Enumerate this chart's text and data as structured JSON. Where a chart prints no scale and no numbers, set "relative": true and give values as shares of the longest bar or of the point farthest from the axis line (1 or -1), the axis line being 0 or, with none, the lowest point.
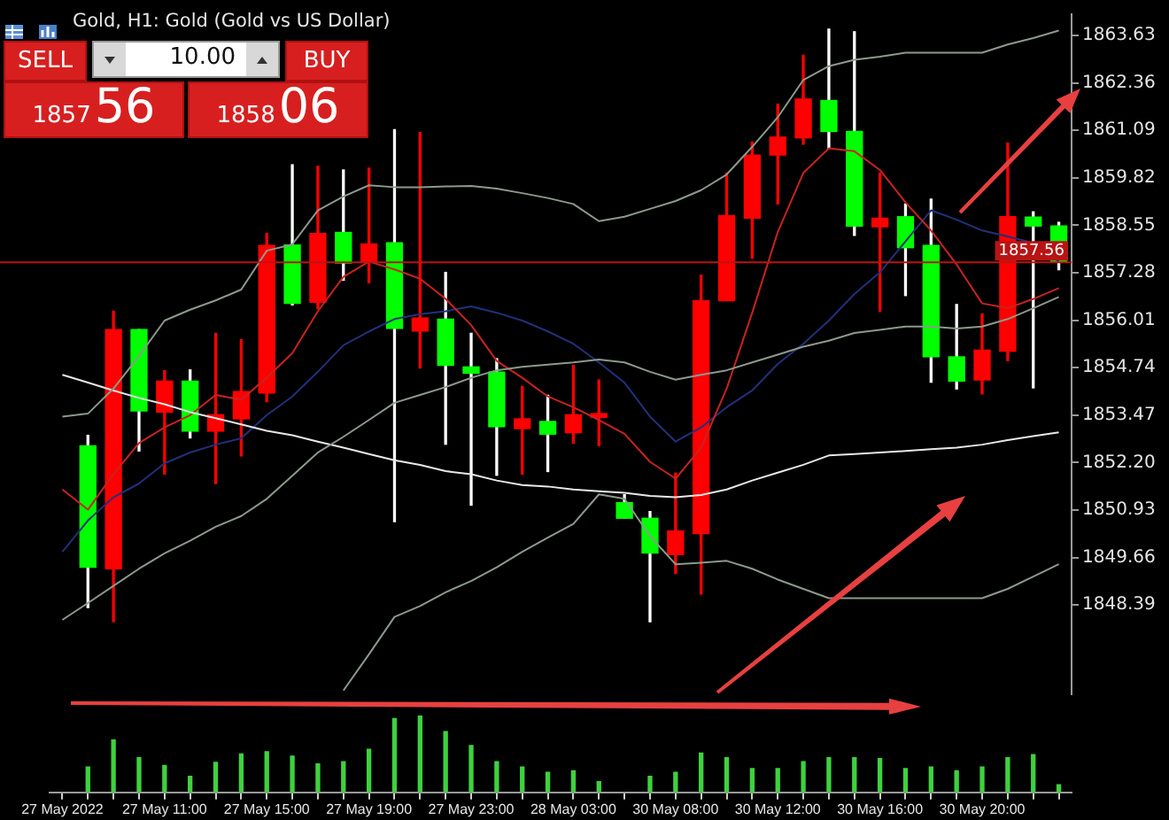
{
  "chart_data": [
    {
      "type": "candlestick",
      "title": "Gold, H1: Gold (Gold vs US Dollar)",
      "annotations": [
        "SELL",
        "10.00",
        "BUY",
        "1857",
        "56",
        "1858",
        "06"
      ],
      "categories": [
        null,
        null,
        null,
        null,
        null,
        null,
        null,
        null,
        null,
        null,
        null,
        null,
        null,
        null,
        null,
        null,
        null,
        null,
        null,
        null,
        null,
        null,
        null,
        null,
        null,
        null,
        null,
        null,
        null,
        null,
        null,
        null,
        null,
        null,
        null,
        null,
        null,
        null,
        null,
        null
      ],
      "ohlc": [
        null,
        [
          1852.65,
          1852.93,
          1848.32,
          1849.4
        ],
        [
          1849.36,
          1856.25,
          1847.94,
          1855.76
        ],
        [
          1855.76,
          1855.76,
          1852.51,
          1853.58
        ],
        [
          1853.55,
          1854.66,
          1851.89,
          1854.38
        ],
        [
          1854.38,
          1854.68,
          1852.86,
          1853.04
        ],
        [
          1853.04,
          1855.66,
          1851.64,
          1853.48
        ],
        [
          1853.37,
          1855.49,
          1852.38,
          1854.1
        ],
        [
          1854.06,
          1858.33,
          1853.83,
          1858.01
        ],
        [
          1858.02,
          1860.17,
          1856.42,
          1856.46
        ],
        [
          1856.49,
          1860.13,
          1856.32,
          1858.33
        ],
        [
          1858.36,
          1860.03,
          1857.08,
          1857.54
        ],
        [
          1857.57,
          1860.08,
          1857.01,
          1858.05
        ],
        [
          1858.08,
          1861.11,
          1850.62,
          1855.79
        ],
        [
          1855.72,
          1861.03,
          1854.73,
          1856.07
        ],
        [
          1856.04,
          1857.29,
          1852.69,
          1854.8
        ],
        [
          1854.76,
          1855.66,
          1851.06,
          1854.59
        ],
        [
          1854.62,
          1854.98,
          1851.86,
          1853.16
        ],
        [
          1853.11,
          1854.24,
          1851.89,
          1853.37
        ],
        [
          1853.3,
          1854.0,
          1851.96,
          1852.96
        ],
        [
          1853.0,
          1854.8,
          1852.72,
          1853.48
        ],
        [
          1853.41,
          1854.41,
          1852.65,
          1853.51
        ],
        [
          1851.13,
          1851.34,
          1850.71,
          1850.71
        ],
        [
          1850.71,
          1850.89,
          1847.94,
          1849.78
        ],
        [
          1849.74,
          1851.92,
          1849.23,
          1850.37
        ],
        [
          1850.3,
          1857.22,
          1848.68,
          1856.53
        ],
        [
          1856.53,
          1859.95,
          1856.53,
          1858.81
        ],
        [
          1858.74,
          1860.78,
          1857.67,
          1860.43
        ],
        [
          1860.43,
          1861.79,
          1859.12,
          1860.91
        ],
        [
          1860.89,
          1863.1,
          1860.72,
          1861.93
        ],
        [
          1861.89,
          1863.8,
          1860.61,
          1861.06
        ],
        [
          1861.06,
          1863.73,
          1858.28,
          1858.53
        ],
        [
          1858.51,
          1859.95,
          1856.25,
          1858.74
        ],
        [
          1858.78,
          1859.12,
          1856.67,
          1857.95
        ],
        [
          1858.01,
          1859.25,
          1854.35,
          1855.03
        ],
        [
          1855.03,
          1856.43,
          1854.17,
          1854.38
        ],
        [
          1854.41,
          1856.18,
          1854.04,
          1855.21
        ],
        [
          1855.18,
          1860.75,
          1854.93,
          1858.78
        ],
        [
          1858.77,
          1858.91,
          1854.2,
          1858.53
        ],
        [
          1858.53,
          1858.63,
          1857.36,
          1857.57
        ]
      ],
      "colors": [
        "#ff0000",
        "#00ff00",
        "#ff0000",
        "#00ff00",
        "#ff0000",
        "#00ff00",
        "#ff0000",
        "#ff0000",
        "#ff0000",
        "#00ff00",
        "#ff0000",
        "#00ff00",
        "#ff0000",
        "#00ff00",
        "#ff0000",
        "#00ff00",
        "#00ff00",
        "#00ff00",
        "#ff0000",
        "#00ff00",
        "#ff0000",
        "#ff0000",
        "#00ff00",
        "#00ff00",
        "#ff0000",
        "#ff0000",
        "#ff0000",
        "#ff0000",
        "#ff0000",
        "#ff0000",
        "#00ff00",
        "#00ff00",
        "#ff0000",
        "#00ff00",
        "#00ff00",
        "#00ff00",
        "#ff0000",
        "#ff0000",
        "#00ff00",
        "#00ff00"
      ],
      "series": [
        {
          "type": "line",
          "color": "#8c998c",
          "values": [
            1853.43,
            1853.51,
            1854.18,
            1855.05,
            1856.0,
            1856.29,
            1856.54,
            1856.83,
            1857.87,
            1858.04,
            1858.95,
            1859.32,
            1859.62,
            1859.57,
            1859.57,
            1859.59,
            1859.6,
            1859.53,
            1859.41,
            1859.28,
            1859.12,
            1858.66,
            1858.78,
            1858.99,
            1859.2,
            1859.49,
            1859.91,
            1860.65,
            1861.44,
            1862.44,
            1862.81,
            1862.98,
            1863.06,
            1863.17,
            1863.17,
            1863.17,
            1863.17,
            1863.39,
            1863.56,
            1863.76
          ]
        },
        {
          "type": "line",
          "color": "#8c998c",
          "values": [
            1847.99,
            1848.44,
            1848.9,
            1849.36,
            1849.77,
            1850.11,
            1850.48,
            1850.77,
            1851.23,
            1851.85,
            1852.47,
            1852.89,
            1853.34,
            1853.8,
            1854.01,
            1854.22,
            1854.47,
            1854.67,
            1854.76,
            1854.82,
            1854.88,
            1854.96,
            1854.88,
            1854.63,
            1854.42,
            1854.55,
            1854.67,
            1854.88,
            1855.09,
            1855.3,
            1855.46,
            1855.67,
            1855.75,
            1855.84,
            1855.84,
            1855.79,
            1855.84,
            1856.04,
            1856.33,
            1856.63
          ]
        },
        {
          "type": "line",
          "color": "#8c998c",
          "values": [
            null,
            null,
            null,
            null,
            null,
            null,
            null,
            null,
            null,
            null,
            null,
            1846.1,
            1847.07,
            1848.07,
            1848.36,
            1848.73,
            1849.03,
            1849.4,
            1849.81,
            1850.19,
            1850.56,
            1851.35,
            1851.23,
            1850.23,
            1849.48,
            1849.52,
            1849.57,
            1849.36,
            1849.07,
            1848.82,
            1848.57,
            1848.57,
            1848.57,
            1848.57,
            1848.57,
            1848.57,
            1848.57,
            1848.82,
            1849.15,
            1849.48
          ]
        },
        {
          "type": "line",
          "color": "#e8e8e8",
          "values": [
            1854.55,
            1854.34,
            1854.13,
            1853.93,
            1853.76,
            1853.55,
            1853.39,
            1853.22,
            1853.05,
            1852.93,
            1852.76,
            1852.6,
            1852.43,
            1852.26,
            1852.14,
            1851.97,
            1851.89,
            1851.72,
            1851.6,
            1851.56,
            1851.48,
            1851.43,
            1851.39,
            1851.31,
            1851.27,
            1851.33,
            1851.48,
            1851.72,
            1851.93,
            1852.14,
            1852.39,
            1852.43,
            1852.47,
            1852.51,
            1852.56,
            1852.6,
            1852.68,
            1852.8,
            1852.91,
            1853.01
          ]
        },
        {
          "type": "line",
          "color": "#c8231e",
          "values": [
            1851.48,
            1850.94,
            1851.89,
            1852.72,
            1853.14,
            1853.47,
            1854.01,
            1853.88,
            1854.47,
            1855.13,
            1856.25,
            1857.17,
            1857.58,
            1857.37,
            1857.12,
            1856.58,
            1855.88,
            1854.92,
            1854.47,
            1853.97,
            1853.68,
            1853.34,
            1852.97,
            1852.22,
            1851.77,
            1852.6,
            1854.18,
            1856.21,
            1858.37,
            1859.95,
            1860.61,
            1860.53,
            1860.03,
            1859.16,
            1858.41,
            1857.5,
            1856.46,
            1856.33,
            1856.58,
            1856.87
          ]
        },
        {
          "type": "line",
          "color": "#22307a",
          "values": [
            1849.81,
            1850.65,
            1851.27,
            1851.64,
            1852.18,
            1852.47,
            1852.68,
            1852.85,
            1853.47,
            1853.97,
            1854.63,
            1855.34,
            1855.71,
            1856.04,
            1856.17,
            1856.25,
            1856.38,
            1856.21,
            1856.0,
            1855.71,
            1855.38,
            1854.88,
            1854.34,
            1853.43,
            1852.76,
            1853.14,
            1853.68,
            1854.13,
            1854.84,
            1855.38,
            1856.0,
            1856.71,
            1857.29,
            1858.12,
            1858.95,
            1858.7,
            1858.41,
            1858.25,
            1858.08,
            1857.58
          ]
        }
      ],
      "ylim": [
        1846.0,
        1864.2
      ],
      "yticks": [
        1848.39,
        1849.66,
        1850.93,
        {
          "value": 1852.2,
          "label": "1852.20"
        },
        1853.47,
        1854.74,
        1856.01,
        1857.28,
        1858.55,
        1859.82,
        1861.09,
        1862.36,
        1863.63
      ],
      "ref_lines": [
        {
          "axis": "y",
          "value": 1857.56,
          "label": "1857.56",
          "color": "#b81414"
        }
      ],
      "tick_labels": "y",
      "grid": false,
      "legend": false
    },
    {
      "type": "bar",
      "relative": true,
      "color": "#3fd13f",
      "tick_labels": "x",
      "grid": false,
      "legend": false,
      "categories": [
        "27 May 2022",
        null,
        null,
        null,
        "27 May 11:00",
        null,
        null,
        null,
        "27 May 15:00",
        null,
        null,
        null,
        "27 May 19:00",
        null,
        null,
        null,
        "27 May 23:00",
        null,
        null,
        null,
        "28 May 03:00",
        null,
        null,
        null,
        "30 May 08:00",
        null,
        null,
        null,
        "30 May 12:00",
        null,
        null,
        null,
        "30 May 16:00",
        null,
        null,
        null,
        "30 May 20:00",
        null,
        null,
        null
      ],
      "values": [
        null,
        0.33,
        0.68,
        0.45,
        0.35,
        0.21,
        0.39,
        0.5,
        0.53,
        0.47,
        0.37,
        0.4,
        0.56,
        0.96,
        1,
        0.79,
        0.61,
        0.4,
        0.33,
        0.26,
        0.28,
        0.14,
        null,
        0.21,
        0.26,
        0.51,
        0.45,
        0.31,
        0.31,
        0.4,
        0.45,
        0.45,
        0.44,
        0.31,
        0.33,
        0.28,
        0.33,
        0.45,
        0.49,
        0.1
      ]
    }
  ]
}
